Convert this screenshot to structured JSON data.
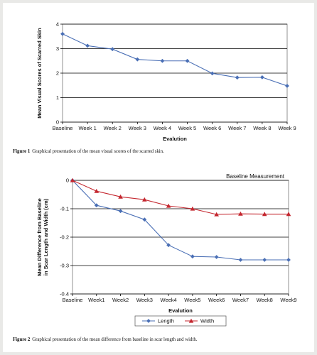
{
  "colors": {
    "series_blue": "#4a6fb5",
    "series_red": "#c4272f",
    "grid": "#000000"
  },
  "chart_data": [
    {
      "type": "line",
      "title": "",
      "xlabel": "Evalution",
      "ylabel": "Mean Visual Scores of Scarred Skin",
      "categories": [
        "Baseline",
        "Week 1",
        "Week 2",
        "Week 3",
        "Week 4",
        "Week 5",
        "Week 6",
        "Week 7",
        "Week 8",
        "Week 9"
      ],
      "series": [
        {
          "name": "",
          "color": "#4a6fb5",
          "marker": "diamond",
          "values": [
            3.6,
            3.12,
            2.98,
            2.56,
            2.5,
            2.5,
            1.99,
            1.82,
            1.83,
            1.48
          ]
        }
      ],
      "ylim": [
        0,
        4
      ],
      "yticks": [
        0,
        1,
        2,
        3,
        4
      ],
      "ytick_labels": [
        "0",
        "1",
        "2",
        "3",
        "4"
      ],
      "grid": true
    },
    {
      "type": "line",
      "title": "",
      "annotation": "Baseline Measurement",
      "xlabel": "Evalution",
      "ylabel": [
        "Mean Difference from Baseline",
        "in Scar Length and Width (cm)"
      ],
      "categories": [
        "Baseline",
        "Week1",
        "Week2",
        "Week3",
        "Week4",
        "Week5",
        "Week6",
        "Week7",
        "Week8",
        "Week9"
      ],
      "series": [
        {
          "name": "Length",
          "color": "#4a6fb5",
          "marker": "diamond",
          "values": [
            0,
            -0.088,
            -0.108,
            -0.138,
            -0.228,
            -0.268,
            -0.27,
            -0.28,
            -0.28,
            -0.28
          ]
        },
        {
          "name": "Width",
          "color": "#c4272f",
          "marker": "triangle",
          "values": [
            0,
            -0.038,
            -0.058,
            -0.068,
            -0.09,
            -0.1,
            -0.12,
            -0.118,
            -0.119,
            -0.119
          ]
        }
      ],
      "ylim": [
        -0.4,
        0
      ],
      "yticks": [
        0,
        -0.1,
        -0.2,
        -0.3,
        -0.4
      ],
      "ytick_labels": [
        "0",
        "-0.1",
        "-0.2",
        "-0.3",
        "-0.4"
      ],
      "grid": true,
      "legend": "bottom"
    }
  ],
  "captions": [
    {
      "label": "Figure 1",
      "text": "Graphical presentation of the mean visual scores of the scarred skin."
    },
    {
      "label": "Figure 2",
      "text": "Graphical presentation of the mean difference from baseline in scar length and width."
    }
  ]
}
